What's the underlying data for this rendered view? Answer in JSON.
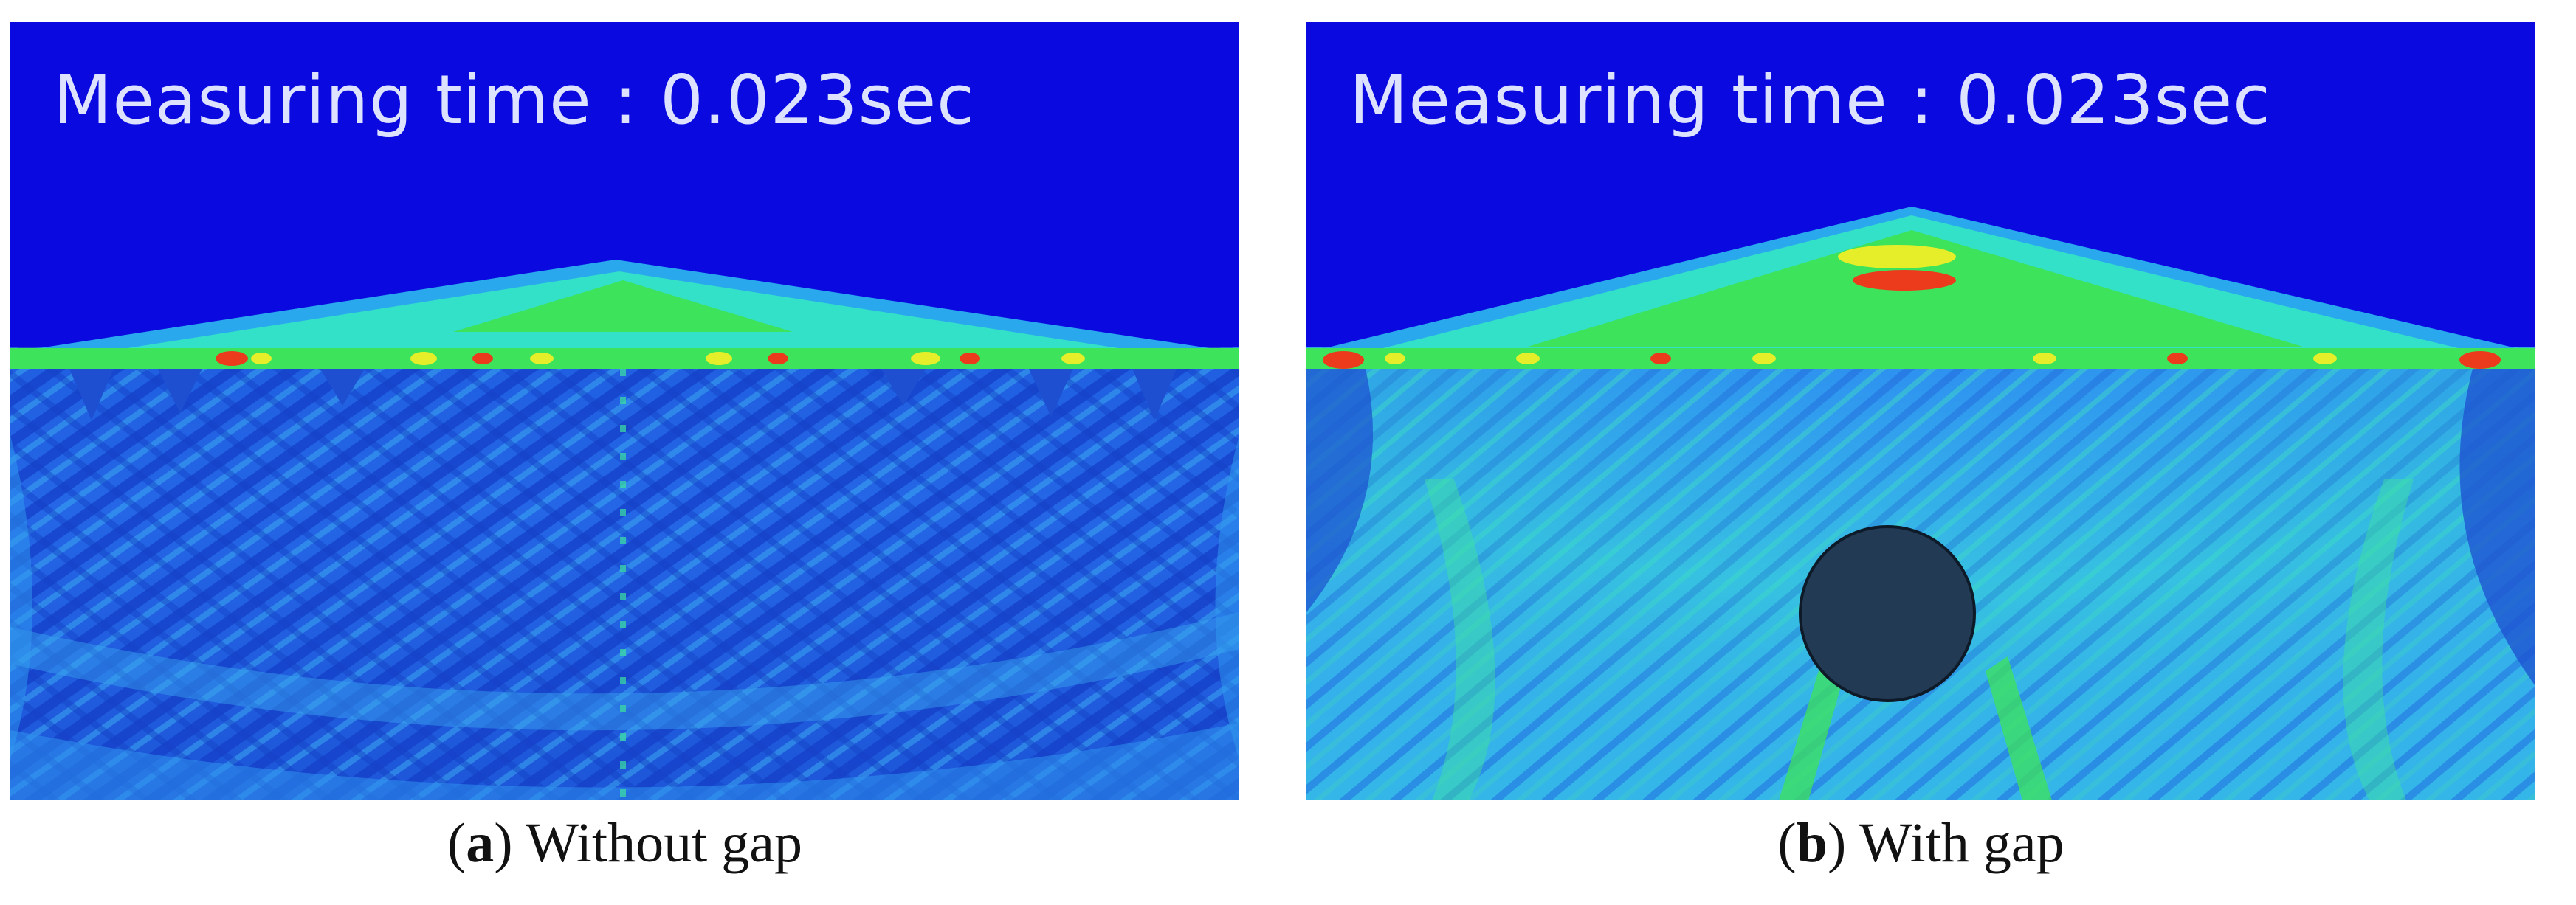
{
  "panels": [
    {
      "measure_label": "Measuring time : 0.023sec",
      "caption_letter": "a",
      "caption_text": "Without gap",
      "has_gap": false
    },
    {
      "measure_label": "Measuring time : 0.023sec",
      "caption_letter": "b",
      "caption_text": "With gap",
      "has_gap": true
    }
  ],
  "colors": {
    "air": "#0a0ae0",
    "deep": "#1b4fd6",
    "medium": "#2a8af0",
    "light": "#38c4ee",
    "cyan": "#33e0c8",
    "green": "#3de35a",
    "yellow": "#e6ee2a",
    "red": "#ec3a1c",
    "gap_fill": "#223a54"
  }
}
